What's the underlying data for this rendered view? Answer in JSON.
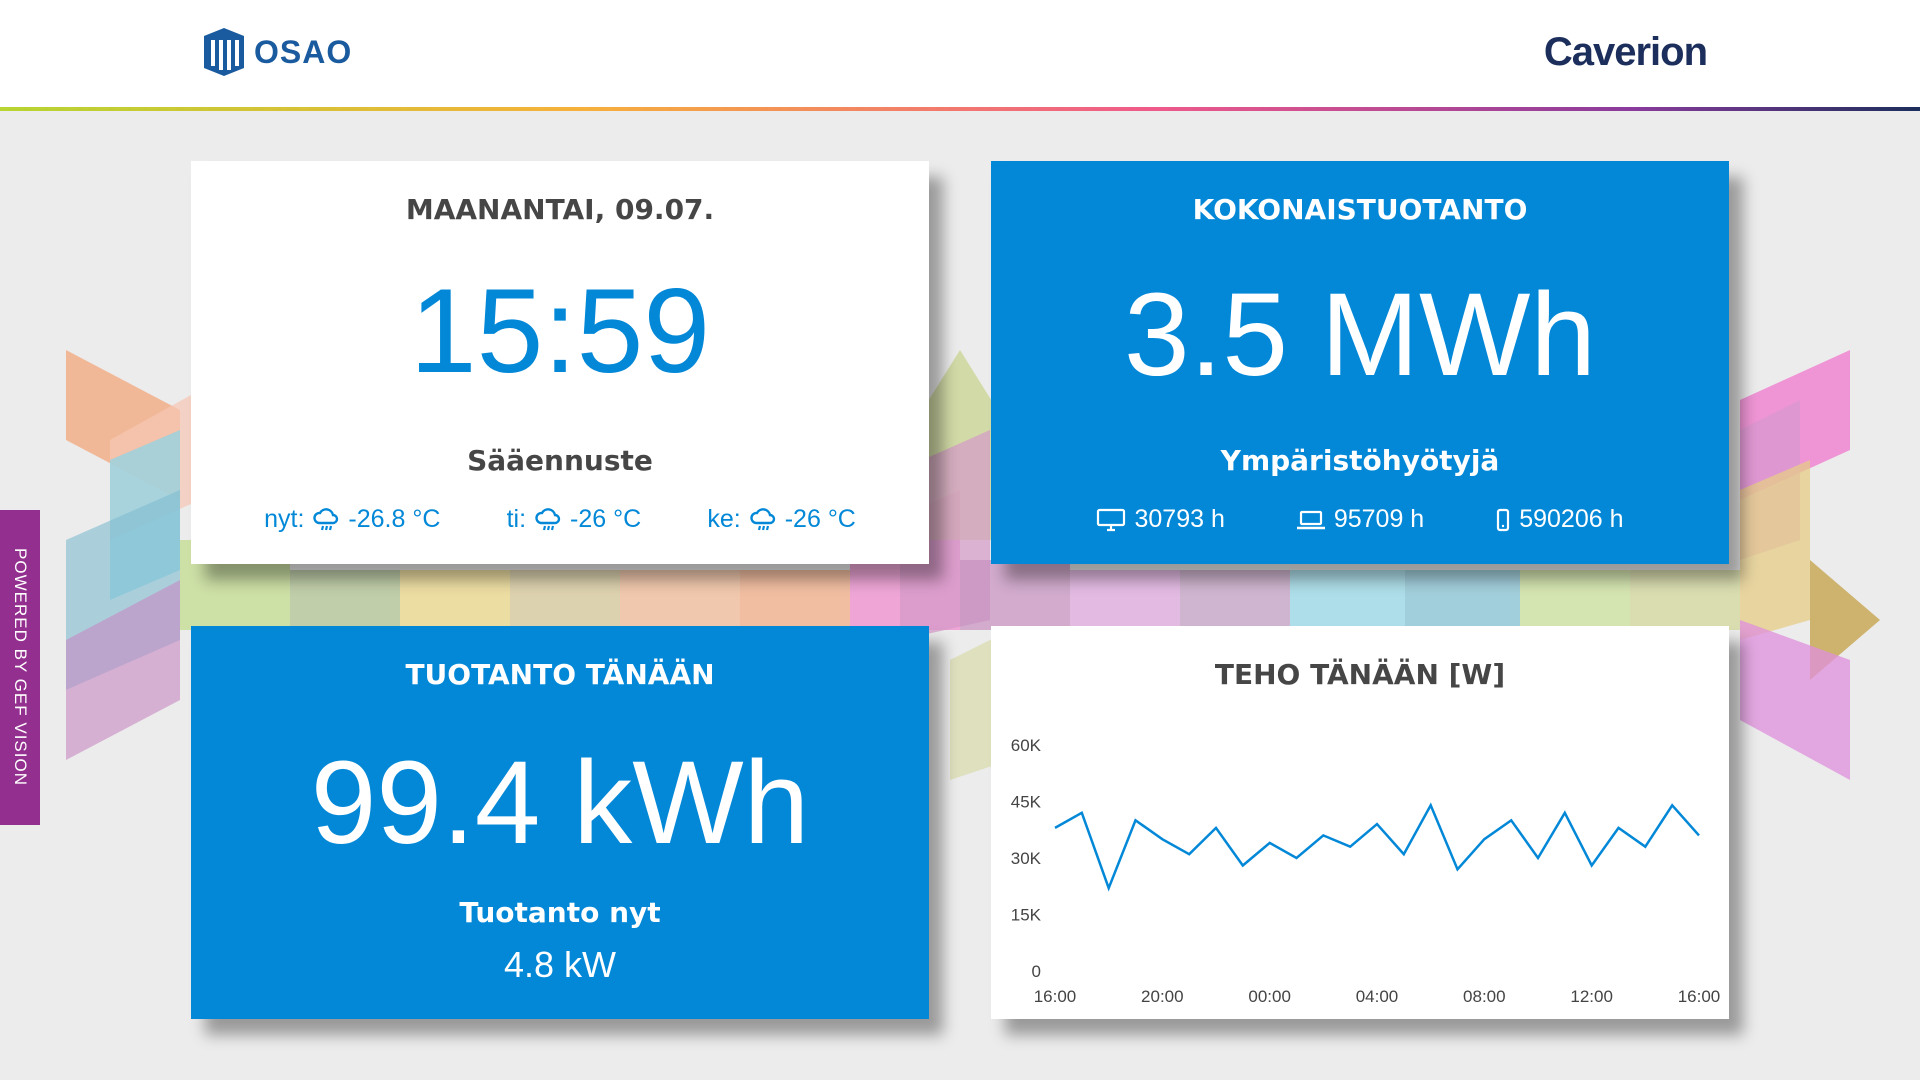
{
  "header": {
    "logo_left": "OSAO",
    "logo_right": "Caverion"
  },
  "sidebar_label": "POWERED BY GEF VISION",
  "clock_card": {
    "date": "MAANANTAI, 09.07.",
    "time": "15:59",
    "forecast_heading": "Sääennuste",
    "forecast": [
      {
        "day": "nyt:",
        "icon": "cloud-rain-icon",
        "temp": "-26.8 °C"
      },
      {
        "day": "ti:",
        "icon": "cloud-rain-icon",
        "temp": "-26 °C"
      },
      {
        "day": "ke:",
        "icon": "cloud-rain-icon",
        "temp": "-26 °C"
      }
    ]
  },
  "total_card": {
    "title": "KOKONAISTUOTANTO",
    "value": "3.5 MWh",
    "benefits_heading": "Ympäristöhyötyjä",
    "benefits": [
      {
        "icon": "monitor-icon",
        "value": "30793 h"
      },
      {
        "icon": "laptop-icon",
        "value": "95709 h"
      },
      {
        "icon": "phone-icon",
        "value": "590206 h"
      }
    ]
  },
  "today_card": {
    "title": "TUOTANTO TÄNÄÄN",
    "value": "99.4 kWh",
    "now_heading": "Tuotanto nyt",
    "now_value": "4.8 kW"
  },
  "colors": {
    "accent_blue": "#0388d8",
    "dark_text": "#464646",
    "sidebar_purple": "#93308f"
  },
  "chart_data": {
    "type": "line",
    "title": "TEHO TÄNÄÄN [W]",
    "ylim": [
      0,
      60000
    ],
    "yticks": [
      0,
      15000,
      30000,
      45000,
      60000
    ],
    "ytick_labels": [
      "0",
      "15K",
      "30K",
      "45K",
      "60K"
    ],
    "xticks": [
      "16:00",
      "20:00",
      "00:00",
      "04:00",
      "08:00",
      "12:00",
      "16:00"
    ],
    "xlim_hours": [
      0,
      24
    ],
    "series": [
      {
        "color": "#0388d8",
        "x_hours": [
          0,
          1,
          2,
          3,
          4,
          5,
          6,
          7,
          8,
          9,
          10,
          11,
          12,
          13,
          14,
          15,
          16,
          17,
          18,
          19,
          20,
          21,
          22,
          23,
          24
        ],
        "values": [
          38000,
          42000,
          22000,
          40000,
          35000,
          31000,
          38000,
          28000,
          34000,
          30000,
          36000,
          33000,
          39000,
          31000,
          44000,
          27000,
          35000,
          40000,
          30000,
          42000,
          28000,
          38000,
          33000,
          44000,
          36000
        ]
      }
    ]
  }
}
